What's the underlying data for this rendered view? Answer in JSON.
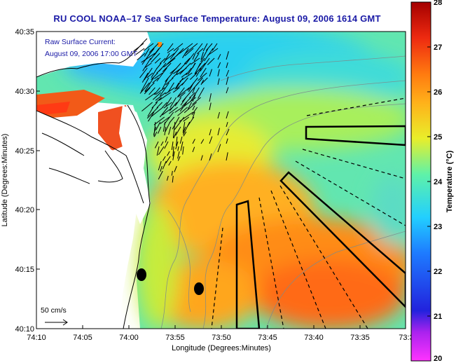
{
  "title": "RU COOL  NOAA–17  Sea Surface Temperature:  August 09, 2006 1614 GMT",
  "annotation": {
    "line1": "Raw Surface Current:",
    "line2": "August 09, 2006 17:00 GMT"
  },
  "scale_label": "50 cm/s",
  "x_axis": {
    "label": "Longitude (Degrees:Minutes)",
    "ticks": [
      "74:10",
      "74:05",
      "74:00",
      "73:55",
      "73:50",
      "73:45",
      "73:40",
      "73:35",
      "73:3"
    ]
  },
  "y_axis": {
    "label": "Latitude (Degrees:Minutes)",
    "ticks": [
      "40:35",
      "40:30",
      "40:25",
      "40:20",
      "40:15",
      "40:10"
    ]
  },
  "colorbar": {
    "label": "Temperature (°C)",
    "ticks": [
      "28",
      "27",
      "26",
      "25",
      "24",
      "23",
      "22",
      "21",
      "20"
    ],
    "range": [
      20,
      28
    ],
    "colors": [
      "#ff33ff",
      "#2222dd",
      "#1e7bff",
      "#22cfff",
      "#5ff2a8",
      "#e9ee2a",
      "#ffb11a",
      "#ff7a10",
      "#ee2a10",
      "#a40000"
    ]
  },
  "colors": {
    "title": "#1a1aa6",
    "land": "#ffffff",
    "coast": "#000000"
  }
}
